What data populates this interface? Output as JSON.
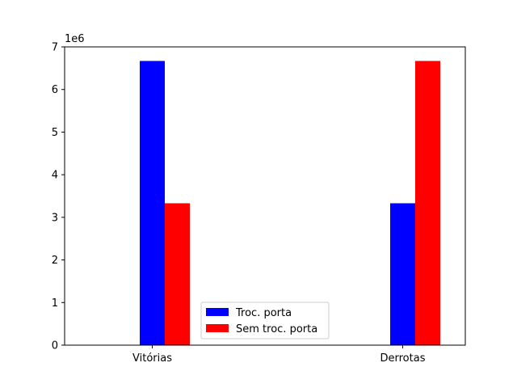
{
  "chart_data": {
    "type": "bar",
    "title": "",
    "xlabel": "",
    "ylabel": "",
    "categories": [
      "Vitórias",
      "Derrotas"
    ],
    "series": [
      {
        "name": "Troc. porta",
        "color": "#0000ff",
        "values": [
          6670000,
          3330000
        ]
      },
      {
        "name": "Sem troc. porta",
        "color": "#ff0000",
        "values": [
          3330000,
          6670000
        ]
      }
    ],
    "ylim": [
      0,
      7000000
    ],
    "yticks": [
      0,
      1000000,
      2000000,
      3000000,
      4000000,
      5000000,
      6000000,
      7000000
    ],
    "ytick_labels": [
      "0",
      "1",
      "2",
      "3",
      "4",
      "5",
      "6",
      "7"
    ],
    "y_offset_label": "1e6",
    "grid": false,
    "legend_position": "bottom-center"
  }
}
